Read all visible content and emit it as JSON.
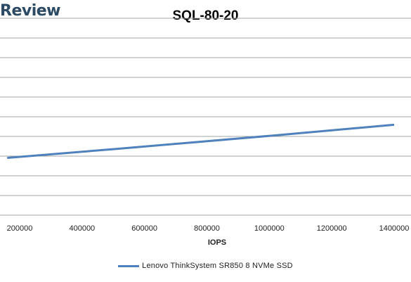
{
  "brand": {
    "text": "Review"
  },
  "chart_data": {
    "type": "line",
    "title": "SQL-80-20",
    "xlabel": "IOPS",
    "ylabel": "",
    "xlim": [
      150000,
      1400000
    ],
    "x_ticks": [
      200000,
      400000,
      600000,
      800000,
      1000000,
      1200000,
      1400000
    ],
    "x_tick_labels": [
      "200000",
      "400000",
      "600000",
      "800000",
      "1000000",
      "1200000",
      "1400000"
    ],
    "grid": true,
    "legend_position": "bottom",
    "series": [
      {
        "name": "Lenovo ThinkSystem SR850 8 NVMe SSD",
        "color": "#4f81bd",
        "points": [
          [
            160000,
            0.268
          ],
          [
            500000,
            0.309
          ],
          [
            1000000,
            0.371
          ],
          [
            1400000,
            0.423
          ]
        ]
      }
    ]
  }
}
